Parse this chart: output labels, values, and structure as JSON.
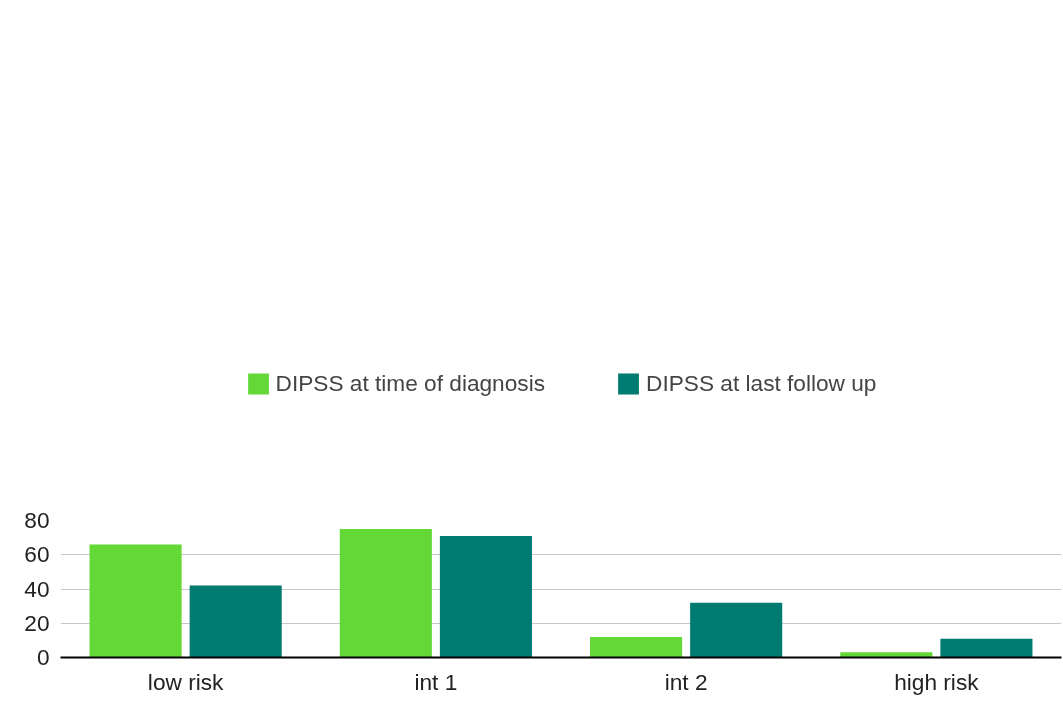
{
  "chart_data": {
    "type": "bar",
    "categories": [
      "low risk",
      "int 1",
      "int 2",
      "high risk"
    ],
    "series": [
      {
        "name": "DIPSS at time of diagnosis",
        "color": "#63d837",
        "values": [
          66,
          75,
          12,
          3
        ]
      },
      {
        "name": "DIPSS at last follow up",
        "color": "#007b71",
        "values": [
          42,
          71,
          32,
          11
        ]
      }
    ],
    "ylim": [
      0,
      80
    ],
    "yticks": [
      0,
      20,
      40,
      60,
      80
    ],
    "grid": "y",
    "legend": "top"
  }
}
